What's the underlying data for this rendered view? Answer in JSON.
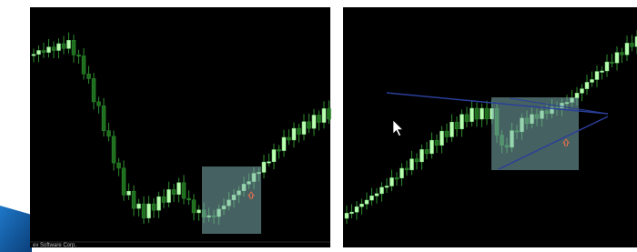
{
  "footer": {
    "copyright": "ex Software Corp."
  }
}
